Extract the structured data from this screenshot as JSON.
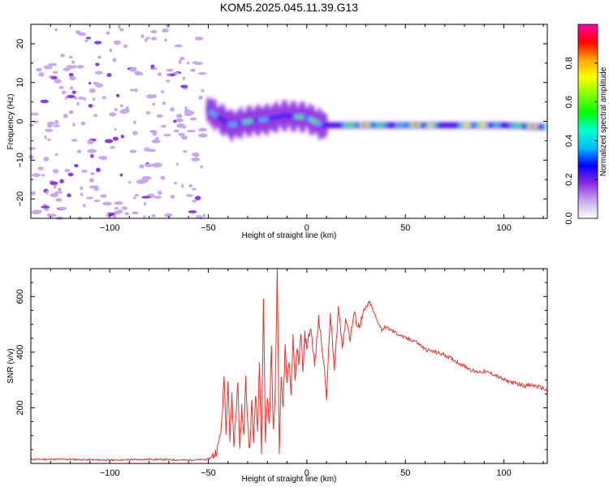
{
  "title": "KOM5.2025.045.11.39.G13",
  "chart_data": [
    {
      "type": "heatmap",
      "xlabel": "Height of straight line (km)",
      "ylabel": "Frequency (Hz)",
      "xlim": [
        -140,
        122
      ],
      "ylim": [
        -25,
        25
      ],
      "xticks": [
        -100,
        -50,
        0,
        50,
        100
      ],
      "yticks": [
        -20,
        -10,
        0,
        10,
        20
      ],
      "colorbar": {
        "label": "Normalized spectral amplitude",
        "ticks": [
          0.0,
          0.2,
          0.4,
          0.6,
          0.8
        ],
        "range": [
          0,
          1
        ],
        "colors": [
          "#ffffff",
          "#c9a6f0",
          "#8a2be2",
          "#0000ff",
          "#00bfff",
          "#00ffcc",
          "#00ff00",
          "#80ff00",
          "#ffff00",
          "#ffa500",
          "#ff0000",
          "#ff00aa"
        ]
      },
      "ridge": [
        {
          "x": -50,
          "y": 3
        },
        {
          "x": -45,
          "y": 1
        },
        {
          "x": -38,
          "y": -1
        },
        {
          "x": -30,
          "y": 0
        },
        {
          "x": -20,
          "y": 0.5
        },
        {
          "x": -12,
          "y": 1.5
        },
        {
          "x": 0,
          "y": 1
        },
        {
          "x": 8,
          "y": -1
        },
        {
          "x": 20,
          "y": -1
        },
        {
          "x": 40,
          "y": -1
        },
        {
          "x": 60,
          "y": -1
        },
        {
          "x": 80,
          "y": -1
        },
        {
          "x": 100,
          "y": -1
        },
        {
          "x": 122,
          "y": -1.5
        }
      ]
    },
    {
      "type": "line",
      "xlabel": "Height of straight line (km)",
      "ylabel": "SNR (v/v)",
      "xlim": [
        -140,
        122
      ],
      "ylim": [
        0,
        700
      ],
      "xticks": [
        -100,
        -50,
        0,
        50,
        100
      ],
      "yticks": [
        200,
        400,
        600
      ],
      "series": [
        {
          "color": "#e8322a",
          "x": [
            -140,
            -120,
            -100,
            -80,
            -60,
            -50,
            -47,
            -45,
            -43,
            -42,
            -41,
            -40,
            -39,
            -38,
            -37,
            -36,
            -35,
            -34,
            -33,
            -32,
            -31,
            -30,
            -29,
            -28,
            -27,
            -26,
            -25,
            -24,
            -23,
            -22,
            -21,
            -20,
            -19,
            -18,
            -17,
            -16,
            -15,
            -14,
            -13,
            -12,
            -11,
            -10,
            -9,
            -8,
            -7,
            -6,
            -5,
            -4,
            -3,
            -2,
            -1,
            0,
            2,
            4,
            6,
            8,
            10,
            12,
            14,
            16,
            18,
            20,
            22,
            24,
            26,
            28,
            30,
            32,
            34,
            36,
            38,
            40,
            45,
            50,
            55,
            60,
            65,
            70,
            75,
            80,
            85,
            90,
            95,
            100,
            105,
            110,
            115,
            120,
            122
          ],
          "y": [
            15,
            15,
            12,
            15,
            12,
            15,
            30,
            60,
            150,
            330,
            120,
            300,
            80,
            250,
            60,
            180,
            290,
            50,
            200,
            90,
            300,
            150,
            40,
            220,
            80,
            260,
            120,
            360,
            40,
            580,
            70,
            250,
            140,
            420,
            120,
            260,
            690,
            50,
            300,
            200,
            420,
            280,
            380,
            230,
            450,
            300,
            400,
            350,
            480,
            320,
            460,
            420,
            490,
            350,
            520,
            410,
            240,
            540,
            330,
            560,
            430,
            520,
            450,
            540,
            490,
            520,
            560,
            580,
            540,
            510,
            480,
            490,
            470,
            450,
            440,
            410,
            400,
            390,
            370,
            350,
            330,
            330,
            320,
            300,
            290,
            280,
            280,
            270,
            260
          ]
        }
      ]
    }
  ]
}
